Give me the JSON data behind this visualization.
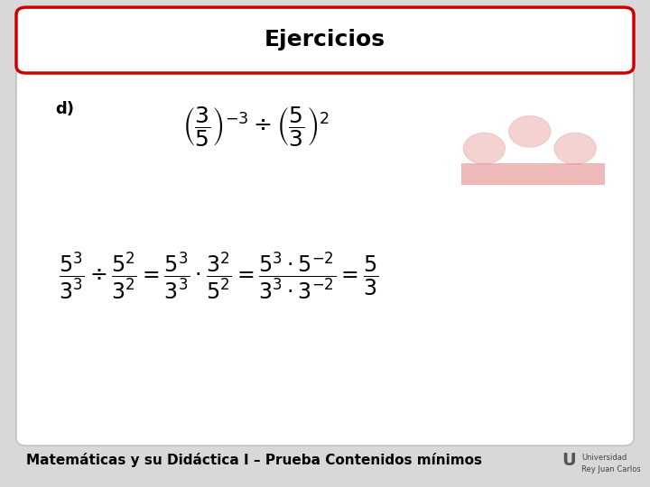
{
  "title": "Ejercicios",
  "label_d": "d)",
  "footer_text": "Matemáticas y su Didáctica I – Prueba Contenidos mínimos",
  "outer_bg": "#d8d8d8",
  "title_border_color": "#cc0000",
  "title_fontsize": 18,
  "watermark_color": "#d8d8d8",
  "circle_color": "#f0c0c0",
  "rect_color": "#e08080"
}
